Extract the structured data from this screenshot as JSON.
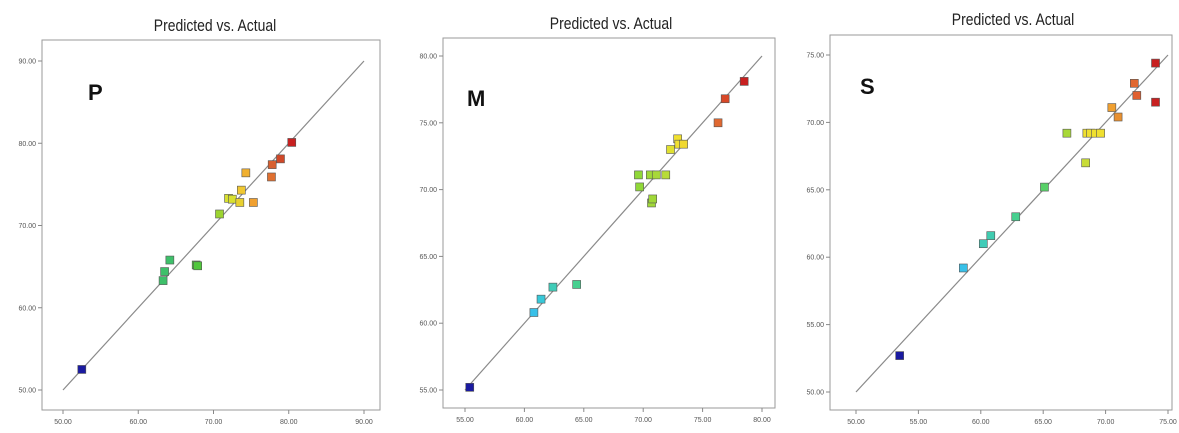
{
  "chart_data": [
    {
      "type": "scatter",
      "title": "Predicted vs. Actual",
      "panel_label": "P",
      "xlim": [
        50,
        90
      ],
      "ylim": [
        50,
        90
      ],
      "xticks": [
        50,
        60,
        70,
        80,
        90
      ],
      "yticks": [
        50,
        60,
        70,
        80,
        90
      ],
      "xtick_labels": [
        "50.00",
        "60.00",
        "70.00",
        "80.00",
        "90.00"
      ],
      "ytick_labels": [
        "50.00",
        "60.00",
        "70.00",
        "80.00",
        "90.00"
      ],
      "points": [
        {
          "x": 52.5,
          "y": 52.5,
          "color": "#1a1aa0"
        },
        {
          "x": 63.3,
          "y": 63.3,
          "color": "#3ec06a"
        },
        {
          "x": 63.5,
          "y": 64.4,
          "color": "#3ec06a"
        },
        {
          "x": 64.2,
          "y": 65.8,
          "color": "#3ec06a"
        },
        {
          "x": 67.7,
          "y": 65.2,
          "color": "#50c83c"
        },
        {
          "x": 67.9,
          "y": 65.1,
          "color": "#50c83c"
        },
        {
          "x": 70.8,
          "y": 71.4,
          "color": "#9cd430"
        },
        {
          "x": 72.0,
          "y": 73.3,
          "color": "#d8e030"
        },
        {
          "x": 72.5,
          "y": 73.2,
          "color": "#d8e030"
        },
        {
          "x": 73.5,
          "y": 72.8,
          "color": "#e8d030"
        },
        {
          "x": 73.7,
          "y": 74.3,
          "color": "#f0c832"
        },
        {
          "x": 74.3,
          "y": 76.4,
          "color": "#f0b030"
        },
        {
          "x": 75.3,
          "y": 72.8,
          "color": "#f0a030"
        },
        {
          "x": 77.7,
          "y": 75.9,
          "color": "#e07030"
        },
        {
          "x": 77.8,
          "y": 77.4,
          "color": "#d86030"
        },
        {
          "x": 78.9,
          "y": 78.1,
          "color": "#d04828"
        },
        {
          "x": 80.4,
          "y": 80.1,
          "color": "#c82020"
        }
      ],
      "grid": false,
      "legend": "none"
    },
    {
      "type": "scatter",
      "title": "Predicted vs. Actual",
      "panel_label": "M",
      "xlim": [
        55,
        80
      ],
      "ylim": [
        55,
        80
      ],
      "xticks": [
        55,
        60,
        65,
        70,
        75,
        80
      ],
      "yticks": [
        55,
        60,
        65,
        70,
        75,
        80
      ],
      "xtick_labels": [
        "55.00",
        "60.00",
        "65.00",
        "70.00",
        "75.00",
        "80.00"
      ],
      "ytick_labels": [
        "55.00",
        "60.00",
        "65.00",
        "70.00",
        "75.00",
        "80.00"
      ],
      "points": [
        {
          "x": 55.4,
          "y": 55.2,
          "color": "#1a1aa0"
        },
        {
          "x": 60.8,
          "y": 60.8,
          "color": "#38c0e8"
        },
        {
          "x": 61.4,
          "y": 61.8,
          "color": "#38c8d8"
        },
        {
          "x": 62.4,
          "y": 62.7,
          "color": "#40ccb8"
        },
        {
          "x": 64.4,
          "y": 62.9,
          "color": "#48d090"
        },
        {
          "x": 69.6,
          "y": 71.1,
          "color": "#90d838"
        },
        {
          "x": 69.7,
          "y": 70.2,
          "color": "#90d838"
        },
        {
          "x": 70.6,
          "y": 71.1,
          "color": "#a0d838"
        },
        {
          "x": 70.7,
          "y": 69.0,
          "color": "#a0d838"
        },
        {
          "x": 70.8,
          "y": 69.3,
          "color": "#a0d838"
        },
        {
          "x": 71.1,
          "y": 71.1,
          "color": "#a8d838"
        },
        {
          "x": 71.9,
          "y": 71.1,
          "color": "#b8dc38"
        },
        {
          "x": 72.3,
          "y": 73.0,
          "color": "#e0e030"
        },
        {
          "x": 72.9,
          "y": 73.8,
          "color": "#f0e030"
        },
        {
          "x": 73.0,
          "y": 73.4,
          "color": "#f0e030"
        },
        {
          "x": 73.4,
          "y": 73.4,
          "color": "#f0d830"
        },
        {
          "x": 76.3,
          "y": 75.0,
          "color": "#e06830"
        },
        {
          "x": 76.9,
          "y": 76.8,
          "color": "#d84828"
        },
        {
          "x": 78.5,
          "y": 78.1,
          "color": "#c82020"
        }
      ],
      "grid": false,
      "legend": "none"
    },
    {
      "type": "scatter",
      "title": "Predicted vs. Actual",
      "panel_label": "S",
      "xlim": [
        50,
        75
      ],
      "ylim": [
        50,
        75
      ],
      "xticks": [
        50,
        55,
        60,
        65,
        70,
        75
      ],
      "yticks": [
        50,
        55,
        60,
        65,
        70,
        75
      ],
      "xtick_labels": [
        "50.00",
        "55.00",
        "60.00",
        "65.00",
        "70.00",
        "75.00"
      ],
      "ytick_labels": [
        "50.00",
        "55.00",
        "60.00",
        "65.00",
        "70.00",
        "75.00"
      ],
      "points": [
        {
          "x": 53.5,
          "y": 52.7,
          "color": "#1a1aa0"
        },
        {
          "x": 58.6,
          "y": 59.2,
          "color": "#38c0e8"
        },
        {
          "x": 60.2,
          "y": 61.0,
          "color": "#40ccb8"
        },
        {
          "x": 60.8,
          "y": 61.6,
          "color": "#40ccb0"
        },
        {
          "x": 62.8,
          "y": 63.0,
          "color": "#48d090"
        },
        {
          "x": 65.1,
          "y": 65.2,
          "color": "#58d068"
        },
        {
          "x": 66.9,
          "y": 69.2,
          "color": "#a8d838"
        },
        {
          "x": 68.4,
          "y": 67.0,
          "color": "#c8dc38"
        },
        {
          "x": 68.5,
          "y": 69.2,
          "color": "#f0e030"
        },
        {
          "x": 68.8,
          "y": 69.2,
          "color": "#f0e030"
        },
        {
          "x": 69.2,
          "y": 69.2,
          "color": "#f0e030"
        },
        {
          "x": 69.6,
          "y": 69.2,
          "color": "#f0e030"
        },
        {
          "x": 70.5,
          "y": 71.1,
          "color": "#f0a030"
        },
        {
          "x": 71.0,
          "y": 70.4,
          "color": "#e89030"
        },
        {
          "x": 72.3,
          "y": 72.9,
          "color": "#e06830"
        },
        {
          "x": 72.5,
          "y": 72.0,
          "color": "#e06030"
        },
        {
          "x": 74.0,
          "y": 74.4,
          "color": "#c82020"
        },
        {
          "x": 74.0,
          "y": 71.5,
          "color": "#c82020"
        }
      ],
      "grid": false,
      "legend": "none"
    }
  ]
}
